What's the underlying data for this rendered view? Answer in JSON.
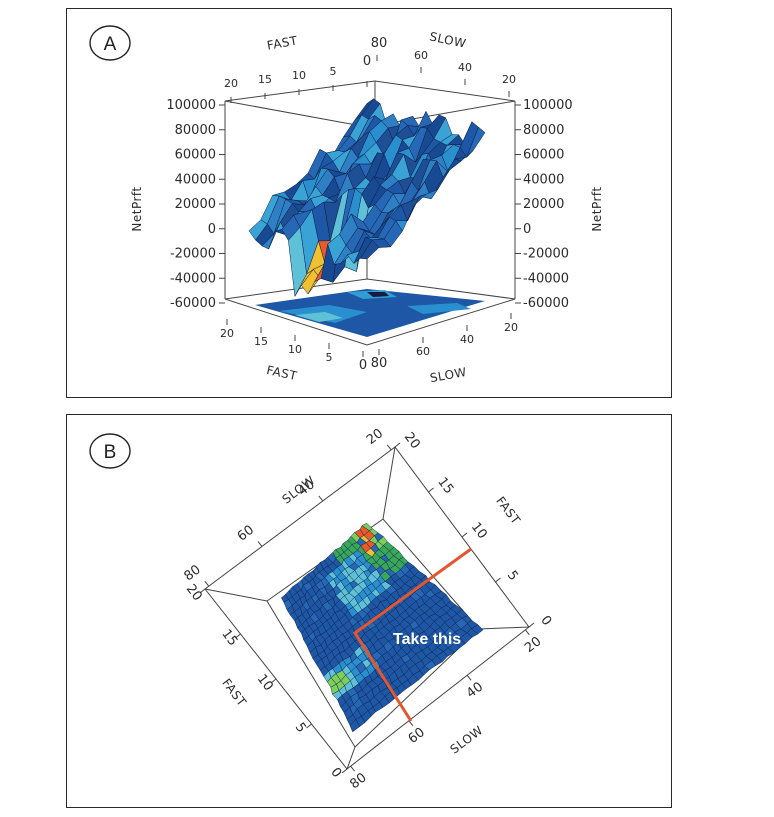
{
  "chart_data": [
    {
      "panel": "A",
      "type": "3d-surface",
      "label": "A",
      "zlabel": "NetPrft",
      "fast_axis_label": "FAST",
      "slow_axis_label": "SLOW",
      "z_ticks_left": [
        "100000",
        "80000",
        "60000",
        "40000",
        "20000",
        "0",
        "-20000",
        "-40000",
        "-60000"
      ],
      "z_ticks_right": [
        "100000",
        "80000",
        "60000",
        "40000",
        "20000",
        "0",
        "-20000",
        "-40000",
        "-60000"
      ],
      "fast_ticks": [
        "20",
        "15",
        "10",
        "5",
        "0"
      ],
      "slow_ticks": [
        "80",
        "60",
        "40",
        "20"
      ],
      "zlim": [
        -60000,
        100000
      ],
      "fast_range": [
        0,
        20
      ],
      "slow_range": [
        20,
        80
      ]
    },
    {
      "panel": "B",
      "type": "3d-surface-topview",
      "label": "B",
      "annotation": "Take this",
      "fast_axis_label": "FAST",
      "slow_axis_label": "SLOW",
      "fast_ticks_right": [
        "20",
        "15",
        "10",
        "5",
        "0"
      ],
      "fast_ticks_left": [
        "20",
        "15",
        "10",
        "5",
        "0"
      ],
      "slow_ticks_top": [
        "20",
        "40",
        "60",
        "80"
      ],
      "slow_ticks_bottom": [
        "20",
        "40",
        "60",
        "80"
      ],
      "highlight_color": "#e4572e"
    }
  ]
}
